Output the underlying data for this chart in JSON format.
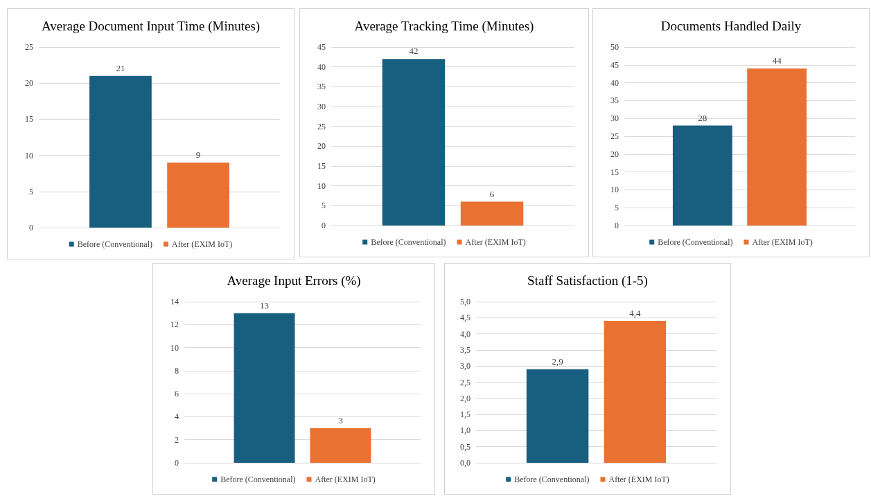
{
  "chart_data": [
    {
      "type": "bar",
      "title": "Average Document Input Time (Minutes)",
      "categories": [
        null
      ],
      "series": [
        {
          "name": "Before (Conventional)",
          "color": "#175e7f",
          "values": [
            21
          ]
        },
        {
          "name": "After (EXIM IoT)",
          "color": "#e97132",
          "values": [
            9
          ]
        }
      ],
      "ylim": [
        0,
        25
      ],
      "yticks": [
        0,
        5,
        10,
        15,
        20,
        25
      ],
      "grid": "y",
      "legend": "bottom",
      "data_labels": true
    },
    {
      "type": "bar",
      "title": "Average Tracking Time (Minutes)",
      "categories": [
        null
      ],
      "series": [
        {
          "name": "Before (Conventional)",
          "color": "#175e7f",
          "values": [
            42
          ]
        },
        {
          "name": "After (EXIM IoT)",
          "color": "#e97132",
          "values": [
            6
          ]
        }
      ],
      "ylim": [
        0,
        45
      ],
      "yticks": [
        0,
        5,
        10,
        15,
        20,
        25,
        30,
        35,
        40,
        45
      ],
      "grid": "y",
      "legend": "bottom",
      "data_labels": true
    },
    {
      "type": "bar",
      "title": "Documents Handled Daily",
      "categories": [
        null
      ],
      "series": [
        {
          "name": "Before (Conventional)",
          "color": "#175e7f",
          "values": [
            28
          ]
        },
        {
          "name": "After (EXIM IoT)",
          "color": "#e97132",
          "values": [
            44
          ]
        }
      ],
      "ylim": [
        0,
        50
      ],
      "yticks": [
        0,
        5,
        10,
        15,
        20,
        25,
        30,
        35,
        40,
        45,
        50
      ],
      "grid": "y",
      "legend": "bottom",
      "data_labels": true
    },
    {
      "type": "bar",
      "title": "Average Input Errors (%)",
      "categories": [
        null
      ],
      "series": [
        {
          "name": "Before (Conventional)",
          "color": "#175e7f",
          "values": [
            13
          ]
        },
        {
          "name": "After (EXIM IoT)",
          "color": "#e97132",
          "values": [
            3
          ]
        }
      ],
      "ylim": [
        0,
        14
      ],
      "yticks": [
        0,
        2,
        4,
        6,
        8,
        10,
        12,
        14
      ],
      "grid": "y",
      "legend": "bottom",
      "data_labels": true
    },
    {
      "type": "bar",
      "title": "Staff Satisfaction (1-5)",
      "categories": [
        null
      ],
      "series": [
        {
          "name": "Before (Conventional)",
          "color": "#175e7f",
          "values": [
            2.9
          ],
          "value_labels": [
            "2,9"
          ]
        },
        {
          "name": "After (EXIM IoT)",
          "color": "#e97132",
          "values": [
            4.4
          ],
          "value_labels": [
            "4,4"
          ]
        }
      ],
      "ylim": [
        0,
        5
      ],
      "yticks": [
        {
          "value": 0,
          "label": "0,0"
        },
        {
          "value": 0.5,
          "label": "0,5"
        },
        {
          "value": 1,
          "label": "1,0"
        },
        {
          "value": 1.5,
          "label": "1,5"
        },
        {
          "value": 2,
          "label": "2,0"
        },
        {
          "value": 2.5,
          "label": "2,5"
        },
        {
          "value": 3,
          "label": "3,0"
        },
        {
          "value": 3.5,
          "label": "3,5"
        },
        {
          "value": 4,
          "label": "4,0"
        },
        {
          "value": 4.5,
          "label": "4,5"
        },
        {
          "value": 5,
          "label": "5,0"
        }
      ],
      "grid": "y",
      "legend": "bottom"
    }
  ]
}
